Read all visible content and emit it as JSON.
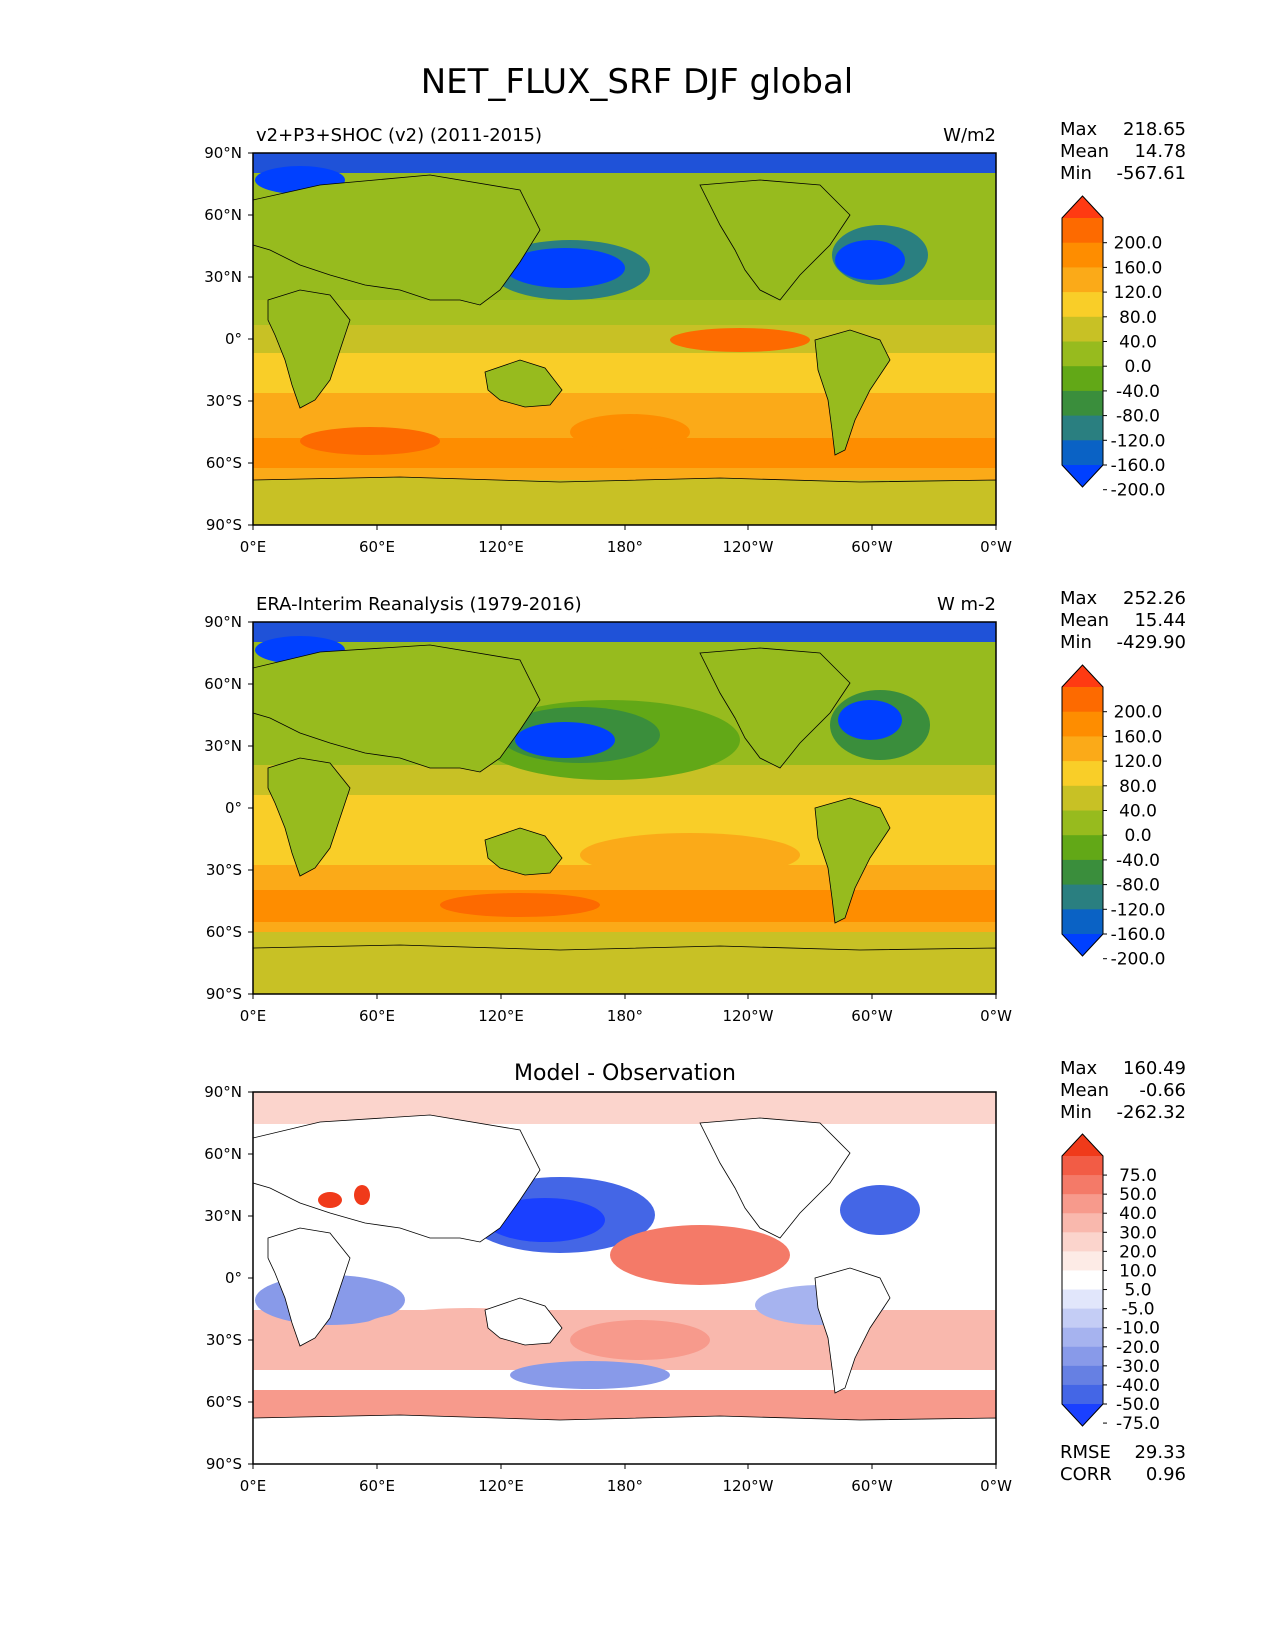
{
  "title": "NET_FLUX_SRF DJF global",
  "x_ticks": [
    "0°E",
    "60°E",
    "120°E",
    "180°",
    "120°W",
    "60°W",
    "0°W"
  ],
  "y_ticks": [
    "90°N",
    "60°N",
    "30°N",
    "0°",
    "30°S",
    "60°S",
    "90°S"
  ],
  "stat_labels": {
    "max": "Max",
    "mean": "Mean",
    "min": "Min",
    "rmse": "RMSE",
    "corr": "CORR"
  },
  "panels": [
    {
      "id": "test",
      "left_title": "v2+P3+SHOC (v2) (2011-2015)",
      "center_title": "",
      "units": "W/m2",
      "stats": {
        "max": "218.65",
        "mean": "14.78",
        "min": "-567.61"
      },
      "colorbar": {
        "labels": [
          "200.0",
          "160.0",
          "120.0",
          "80.0",
          "40.0",
          "0.0",
          "-40.0",
          "-80.0",
          "-120.0",
          "-160.0",
          "-200.0"
        ],
        "colors": [
          "#ff3a12",
          "#fd6a00",
          "#fe8d00",
          "#fbaa18",
          "#f9ce28",
          "#c8c125",
          "#97bb1e",
          "#62a817",
          "#3a8e3c",
          "#2a7f80",
          "#0a62c5",
          "#0040ff"
        ]
      }
    },
    {
      "id": "reference",
      "left_title": "ERA-Interim Reanalysis (1979-2016)",
      "center_title": "",
      "units": "W m-2",
      "stats": {
        "max": "252.26",
        "mean": "15.44",
        "min": "-429.90"
      },
      "colorbar": {
        "labels": [
          "200.0",
          "160.0",
          "120.0",
          "80.0",
          "40.0",
          "0.0",
          "-40.0",
          "-80.0",
          "-120.0",
          "-160.0",
          "-200.0"
        ],
        "colors": [
          "#ff3a12",
          "#fd6a00",
          "#fe8d00",
          "#fbaa18",
          "#f9ce28",
          "#c8c125",
          "#97bb1e",
          "#62a817",
          "#3a8e3c",
          "#2a7f80",
          "#0a62c5",
          "#0040ff"
        ]
      }
    },
    {
      "id": "diff",
      "left_title": "",
      "center_title": "Model - Observation",
      "units": "",
      "stats": {
        "max": "160.49",
        "mean": "-0.66",
        "min": "-262.32"
      },
      "rmse": "29.33",
      "corr": "0.96",
      "colorbar": {
        "labels": [
          "75.0",
          "50.0",
          "40.0",
          "30.0",
          "20.0",
          "10.0",
          "5.0",
          "-5.0",
          "-10.0",
          "-20.0",
          "-30.0",
          "-40.0",
          "-50.0",
          "-75.0"
        ],
        "colors": [
          "#f03a1a",
          "#f25c45",
          "#f47a68",
          "#f79a8c",
          "#f9b8ad",
          "#fbd4cc",
          "#fdebe6",
          "#ffffff",
          "#e1e6fb",
          "#c4cdf5",
          "#a6b3ef",
          "#889ae9",
          "#6680e3",
          "#4466e6",
          "#1a40ff"
        ]
      }
    }
  ]
}
